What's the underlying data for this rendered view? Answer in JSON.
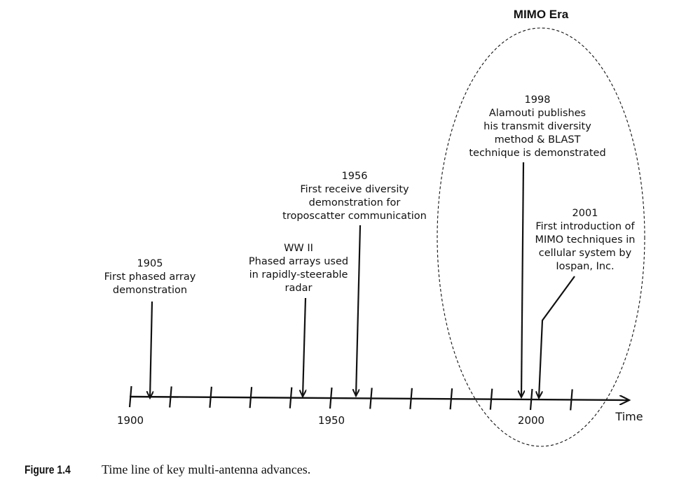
{
  "era": {
    "title": "MIMO Era"
  },
  "axis": {
    "title": "Time",
    "tick_labels": [
      "1900",
      "1950",
      "2000"
    ]
  },
  "events": [
    {
      "id": "1905",
      "lines": [
        "1905",
        "First phased array",
        "demonstration"
      ]
    },
    {
      "id": "ww2",
      "lines": [
        "WW II",
        "Phased arrays used",
        "in rapidly-steerable",
        "radar"
      ]
    },
    {
      "id": "1956",
      "lines": [
        "1956",
        "First receive diversity",
        "demonstration for",
        "troposcatter communication"
      ]
    },
    {
      "id": "1998",
      "lines": [
        "1998",
        "Alamouti publishes",
        "his transmit diversity",
        "method & BLAST",
        "technique is demonstrated"
      ]
    },
    {
      "id": "2001",
      "lines": [
        "2001",
        "First introduction of",
        "MIMO techniques in",
        "cellular system by",
        "Iospan, Inc."
      ]
    }
  ],
  "caption": {
    "number": "Figure 1.4",
    "text": "Time line of key multi-antenna advances."
  }
}
